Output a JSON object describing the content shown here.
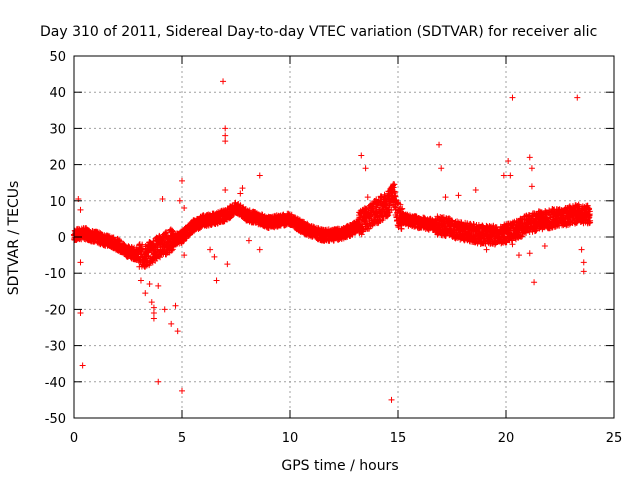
{
  "chart_data": {
    "type": "scatter",
    "title": "Day 310 of 2011, Sidereal Day-to-day VTEC variation (SDTVAR) for receiver alic",
    "xlabel": "GPS time / hours",
    "ylabel": "SDTVAR / TECUs",
    "xlim": [
      0,
      25
    ],
    "ylim": [
      -50,
      50
    ],
    "xticks": [
      0,
      5,
      10,
      15,
      20,
      25
    ],
    "yticks": [
      -50,
      -40,
      -30,
      -20,
      -10,
      0,
      10,
      20,
      30,
      40,
      50
    ],
    "grid": true,
    "legend": "none",
    "marker": "+",
    "color": "#ff0000",
    "trend": [
      [
        0.0,
        0.5
      ],
      [
        0.5,
        1.0
      ],
      [
        1.0,
        0.0
      ],
      [
        1.5,
        -1.0
      ],
      [
        2.0,
        -2.0
      ],
      [
        2.5,
        -4.0
      ],
      [
        3.0,
        -5.0
      ],
      [
        3.3,
        -5.5
      ],
      [
        3.6,
        -4.0
      ],
      [
        4.0,
        -2.5
      ],
      [
        4.5,
        -1.0
      ],
      [
        5.0,
        0.0
      ],
      [
        5.5,
        3.0
      ],
      [
        6.0,
        4.5
      ],
      [
        6.5,
        5.0
      ],
      [
        7.0,
        6.0
      ],
      [
        7.5,
        8.0
      ],
      [
        8.0,
        6.0
      ],
      [
        8.6,
        5.0
      ],
      [
        9.0,
        4.0
      ],
      [
        9.5,
        4.5
      ],
      [
        10.0,
        5.0
      ],
      [
        10.5,
        3.0
      ],
      [
        11.0,
        1.5
      ],
      [
        11.5,
        0.5
      ],
      [
        12.0,
        0.5
      ],
      [
        12.5,
        1.0
      ],
      [
        13.0,
        2.5
      ],
      [
        13.5,
        5.0
      ],
      [
        14.0,
        7.0
      ],
      [
        14.5,
        9.0
      ],
      [
        14.8,
        12.0
      ],
      [
        15.0,
        6.0
      ],
      [
        15.5,
        4.5
      ],
      [
        16.0,
        4.0
      ],
      [
        16.5,
        3.5
      ],
      [
        17.0,
        3.0
      ],
      [
        17.5,
        2.5
      ],
      [
        18.0,
        1.5
      ],
      [
        18.5,
        1.0
      ],
      [
        19.0,
        0.5
      ],
      [
        19.5,
        0.5
      ],
      [
        20.0,
        1.0
      ],
      [
        20.5,
        2.0
      ],
      [
        21.0,
        3.5
      ],
      [
        21.5,
        4.5
      ],
      [
        22.0,
        5.0
      ],
      [
        22.5,
        5.5
      ],
      [
        23.0,
        6.0
      ],
      [
        23.5,
        6.5
      ],
      [
        23.9,
        6.0
      ]
    ],
    "outliers": [
      [
        0.2,
        10.5
      ],
      [
        0.3,
        7.5
      ],
      [
        0.3,
        -7.0
      ],
      [
        0.3,
        -21.0
      ],
      [
        0.4,
        -35.5
      ],
      [
        3.1,
        -12.0
      ],
      [
        3.3,
        -15.5
      ],
      [
        3.5,
        -13.0
      ],
      [
        3.6,
        -18.0
      ],
      [
        3.7,
        -19.5
      ],
      [
        3.7,
        -21.0
      ],
      [
        3.7,
        -22.5
      ],
      [
        3.9,
        -13.5
      ],
      [
        3.9,
        -40.0
      ],
      [
        4.1,
        10.5
      ],
      [
        4.2,
        -20.0
      ],
      [
        4.5,
        -24.0
      ],
      [
        4.7,
        -19.0
      ],
      [
        4.8,
        -26.0
      ],
      [
        4.9,
        10.0
      ],
      [
        5.0,
        15.5
      ],
      [
        5.0,
        -42.5
      ],
      [
        5.1,
        8.0
      ],
      [
        5.1,
        -5.0
      ],
      [
        5.6,
        3.0
      ],
      [
        6.3,
        -3.5
      ],
      [
        6.5,
        -5.5
      ],
      [
        6.6,
        -12.0
      ],
      [
        6.9,
        43.0
      ],
      [
        7.0,
        30.0
      ],
      [
        7.0,
        28.0
      ],
      [
        7.0,
        26.5
      ],
      [
        7.0,
        13.0
      ],
      [
        7.1,
        -7.5
      ],
      [
        7.7,
        12.0
      ],
      [
        7.8,
        13.5
      ],
      [
        8.1,
        -1.0
      ],
      [
        8.6,
        17.0
      ],
      [
        8.6,
        -3.5
      ],
      [
        13.3,
        22.5
      ],
      [
        13.5,
        19.0
      ],
      [
        13.6,
        11.0
      ],
      [
        14.7,
        -45.0
      ],
      [
        16.9,
        25.5
      ],
      [
        17.0,
        19.0
      ],
      [
        17.2,
        11.0
      ],
      [
        17.8,
        11.5
      ],
      [
        18.6,
        13.0
      ],
      [
        19.1,
        -3.5
      ],
      [
        19.9,
        17.0
      ],
      [
        20.1,
        21.0
      ],
      [
        20.2,
        17.0
      ],
      [
        20.3,
        38.5
      ],
      [
        20.3,
        -2.0
      ],
      [
        20.6,
        -5.0
      ],
      [
        21.1,
        -4.5
      ],
      [
        21.1,
        22.0
      ],
      [
        21.2,
        14.0
      ],
      [
        21.2,
        19.0
      ],
      [
        21.3,
        -12.5
      ],
      [
        21.8,
        -2.5
      ],
      [
        23.3,
        38.5
      ],
      [
        23.5,
        -3.5
      ],
      [
        23.6,
        -7.0
      ],
      [
        23.6,
        -9.5
      ]
    ]
  }
}
